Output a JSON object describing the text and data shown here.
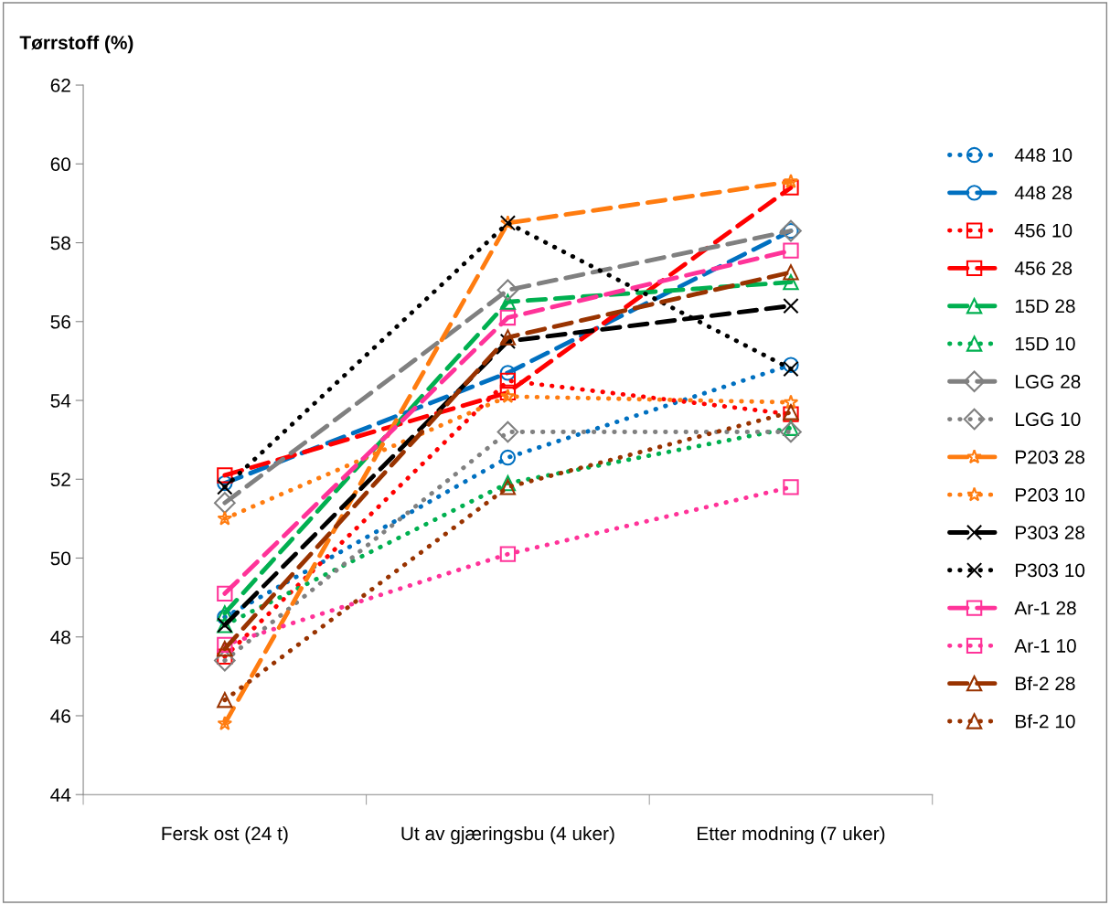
{
  "chart_data": {
    "type": "line",
    "ylabel": "Tørrstoff (%)",
    "categories": [
      "Fersk ost (24 t)",
      "Ut av gjæringsbu (4 uker)",
      "Etter modning (7 uker)"
    ],
    "ylim": [
      44,
      62
    ],
    "yticks": [
      44,
      46,
      48,
      50,
      52,
      54,
      56,
      58,
      60,
      62
    ],
    "grid": false,
    "legend": "right",
    "series": [
      {
        "name": "448 10",
        "color": "#0070c0",
        "values": [
          48.5,
          52.55,
          54.9
        ],
        "marker": "circle",
        "line_style": "dotted"
      },
      {
        "name": "448 28",
        "color": "#0070c0",
        "values": [
          51.9,
          54.7,
          58.3
        ],
        "marker": "circle",
        "line_style": "dashed"
      },
      {
        "name": "456 10",
        "color": "#ff0000",
        "values": [
          47.5,
          54.5,
          53.65
        ],
        "marker": "square",
        "line_style": "dotted"
      },
      {
        "name": "456 28",
        "color": "#ff0000",
        "values": [
          52.1,
          54.2,
          59.4
        ],
        "marker": "square",
        "line_style": "dashed"
      },
      {
        "name": "15D 28",
        "color": "#00b050",
        "values": [
          48.6,
          56.5,
          57.0
        ],
        "marker": "triangle",
        "line_style": "dashed"
      },
      {
        "name": "15D 10",
        "color": "#00b050",
        "values": [
          48.3,
          51.9,
          53.3
        ],
        "marker": "triangle",
        "line_style": "dotted"
      },
      {
        "name": "LGG 28",
        "color": "#808080",
        "values": [
          51.4,
          56.8,
          58.3
        ],
        "marker": "diamond",
        "line_style": "dashed"
      },
      {
        "name": "LGG 10",
        "color": "#808080",
        "values": [
          47.4,
          53.2,
          53.2
        ],
        "marker": "diamond",
        "line_style": "dotted"
      },
      {
        "name": "P203 28",
        "color": "#ff7c10",
        "values": [
          45.8,
          58.5,
          59.55
        ],
        "marker": "star",
        "line_style": "dashed"
      },
      {
        "name": "P203 10",
        "color": "#ff7c10",
        "values": [
          51.0,
          54.1,
          53.95
        ],
        "marker": "star",
        "line_style": "dotted"
      },
      {
        "name": "P303 28",
        "color": "#000000",
        "values": [
          48.3,
          55.5,
          56.4
        ],
        "marker": "cross",
        "line_style": "dashed"
      },
      {
        "name": "P303 10",
        "color": "#000000",
        "values": [
          51.8,
          58.5,
          54.8
        ],
        "marker": "cross",
        "line_style": "dotted"
      },
      {
        "name": "Ar-1 28",
        "color": "#ff3399",
        "values": [
          49.1,
          56.1,
          57.8
        ],
        "marker": "square",
        "line_style": "dashed"
      },
      {
        "name": "Ar-1 10",
        "color": "#ff3399",
        "values": [
          47.8,
          50.1,
          51.8
        ],
        "marker": "square",
        "line_style": "dotted"
      },
      {
        "name": "Bf-2 28",
        "color": "#993300",
        "values": [
          47.7,
          55.6,
          57.25
        ],
        "marker": "triangle",
        "line_style": "dashed"
      },
      {
        "name": "Bf-2 10",
        "color": "#993300",
        "values": [
          46.4,
          51.8,
          53.7
        ],
        "marker": "triangle",
        "line_style": "dotted"
      }
    ]
  }
}
